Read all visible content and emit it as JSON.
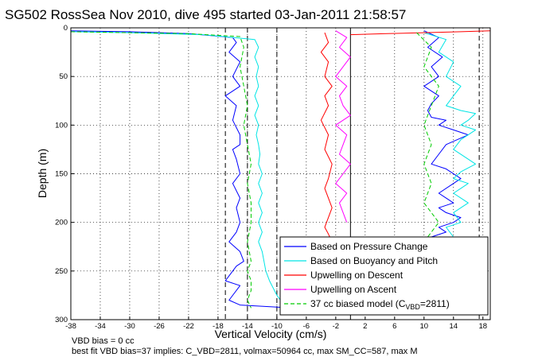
{
  "chart_data": {
    "type": "line",
    "title": "SG502 RossSea Nov 2010, dive 495 started 03-Jan-2011 21:58:57",
    "xlabel": "Vertical Velocity (cm/s)",
    "ylabel": "Depth (m)",
    "xlim": [
      -38,
      19
    ],
    "ylim": [
      0,
      300
    ],
    "y_reversed": true,
    "grid": true,
    "legend_position": "bottom-right",
    "xticks": [
      "-38",
      "-34",
      "-30",
      "-26",
      "-22",
      "-18",
      "-14",
      "-10",
      "-6",
      "-2",
      "2",
      "6",
      "10",
      "14",
      "18"
    ],
    "yticks": [
      "0",
      "50",
      "100",
      "150",
      "200",
      "250",
      "300"
    ],
    "vlines_dashed": [
      -17,
      -14,
      -10,
      17.5
    ],
    "vline_solid": 0,
    "series": [
      {
        "name": "Based on Pressure Change",
        "color": "#0000ff",
        "style": "solid",
        "segments": [
          {
            "x": [
              -38,
              -30,
              -22,
              -16,
              -15.5,
              -16.5,
              -15,
              -16,
              -15,
              -17,
              -15.5,
              -16,
              -15,
              -15,
              -16,
              -15.5,
              -15,
              -16,
              -15,
              -15.5,
              -15,
              -15.5,
              -16.5,
              -15,
              -14.5,
              -15.5,
              -17,
              -15,
              -16.5,
              -15,
              -8
            ],
            "y": [
              3,
              4,
              6,
              10,
              15,
              25,
              35,
              50,
              60,
              70,
              80,
              95,
              110,
              120,
              125,
              135,
              150,
              160,
              175,
              185,
              200,
              210,
              220,
              230,
              240,
              245,
              260,
              265,
              280,
              285,
              288
            ]
          },
          {
            "x": [
              10,
              12,
              10.5,
              12.5,
              11,
              12,
              10,
              12,
              11,
              10.5,
              11,
              13,
              12,
              14,
              16,
              13,
              12,
              11,
              13,
              15,
              14,
              12,
              13,
              14,
              12,
              13,
              15,
              14,
              12,
              13,
              11,
              12
            ],
            "y": [
              3,
              10,
              20,
              30,
              40,
              50,
              60,
              70,
              78,
              85,
              92,
              95,
              100,
              105,
              110,
              120,
              130,
              140,
              145,
              155,
              160,
              170,
              175,
              180,
              185,
              190,
              195,
              200,
              205,
              210,
              215,
              220
            ]
          }
        ]
      },
      {
        "name": "Based on Buoyancy and Pitch",
        "color": "#00e5e5",
        "style": "solid",
        "segments": [
          {
            "x": [
              -38,
              -30,
              -20,
              -13,
              -12.5,
              -13,
              -12.5,
              -12.8,
              -12.5,
              -13,
              -12.5,
              -13,
              -12.5,
              -12.8,
              -12.5,
              -12.3,
              -12.5,
              -12,
              -12.5,
              -12,
              -12.5,
              -12,
              -12.5,
              -12,
              -12.5,
              -12,
              -11.5,
              -11,
              -10,
              -9
            ],
            "y": [
              4,
              5,
              7,
              12,
              20,
              30,
              40,
              50,
              60,
              70,
              80,
              90,
              100,
              110,
              120,
              130,
              140,
              150,
              160,
              170,
              180,
              190,
              200,
              210,
              220,
              230,
              250,
              260,
              275,
              285
            ]
          },
          {
            "x": [
              10,
              13,
              12,
              14,
              13,
              15,
              14,
              13,
              15,
              17,
              16,
              15,
              17,
              15,
              14,
              16,
              17,
              15,
              14,
              16,
              15,
              14,
              15,
              16,
              15,
              14,
              15,
              13,
              14,
              12
            ],
            "y": [
              5,
              12,
              25,
              35,
              50,
              60,
              70,
              80,
              85,
              88,
              95,
              100,
              105,
              115,
              125,
              135,
              140,
              148,
              155,
              160,
              165,
              170,
              175,
              180,
              185,
              190,
              200,
              205,
              215,
              225
            ]
          }
        ]
      },
      {
        "name": "Upwelling on Descent",
        "color": "#ff0000",
        "style": "solid",
        "segments": [
          {
            "x": [
              -3.5,
              -3,
              -4,
              -3,
              -3.5,
              -2.5,
              -3.5,
              -3,
              -4,
              -3,
              -3.5,
              -2.5,
              -3,
              -3.5,
              -3,
              -2.5,
              -3,
              -3.5,
              -3,
              -2.5,
              -3,
              -2.5
            ],
            "y": [
              5,
              15,
              25,
              35,
              50,
              60,
              70,
              80,
              95,
              110,
              125,
              140,
              155,
              165,
              175,
              185,
              195,
              205,
              212,
              220,
              225,
              230
            ]
          },
          {
            "x": [
              0,
              5,
              10,
              15,
              19
            ],
            "y": [
              7,
              6,
              5,
              4,
              3
            ]
          }
        ]
      },
      {
        "name": "Upwelling on Ascent",
        "color": "#ff00ff",
        "style": "solid",
        "segments": [
          {
            "x": [
              -2,
              -0.5,
              -1.5,
              0,
              -1,
              -2,
              -0.5,
              -1.5,
              -1,
              0,
              -2,
              -0.5,
              -1,
              -1.5,
              0,
              -1,
              -2,
              -0.5,
              -1.5,
              -1,
              -0.5
            ],
            "y": [
              3,
              10,
              20,
              30,
              40,
              50,
              60,
              70,
              80,
              90,
              100,
              110,
              120,
              130,
              140,
              150,
              160,
              170,
              180,
              190,
              200
            ]
          }
        ]
      },
      {
        "name": "37 cc biased model (C_VBD=2811)",
        "color": "#00cc00",
        "style": "dashed",
        "segments": [
          {
            "x": [
              -38,
              -30,
              -22,
              -15,
              -14.5,
              -15,
              -14.5,
              -14,
              -14.5,
              -14,
              -13.5,
              -14,
              -13.5,
              -13.5,
              -14,
              -13.5,
              -14,
              -13.5,
              -13.5,
              -14,
              -13.5
            ],
            "y": [
              4,
              5,
              6,
              9,
              20,
              40,
              60,
              80,
              100,
              120,
              140,
              160,
              180,
              200,
              220,
              240,
              250,
              260,
              270,
              280,
              288
            ]
          },
          {
            "x": [
              9,
              11,
              10,
              12,
              11,
              10,
              11,
              10,
              11,
              10,
              12,
              11,
              10
            ],
            "y": [
              5,
              20,
              40,
              60,
              80,
              100,
              120,
              140,
              160,
              180,
              200,
              210,
              220
            ]
          }
        ]
      }
    ],
    "legend_labels": [
      "Based on Pressure Change",
      "Based on Buoyancy and Pitch",
      "Upwelling on Descent",
      "Upwelling on Ascent",
      "37 cc biased model (C"
    ],
    "legend_subscript": "VBD",
    "legend_suffix": "=2811)",
    "notes": [
      "VBD bias = 0 cc",
      "best fit VBD bias=37 implies: C_VBD=2811, volmax=50964 cc, max SM_CC=587, max M"
    ]
  }
}
